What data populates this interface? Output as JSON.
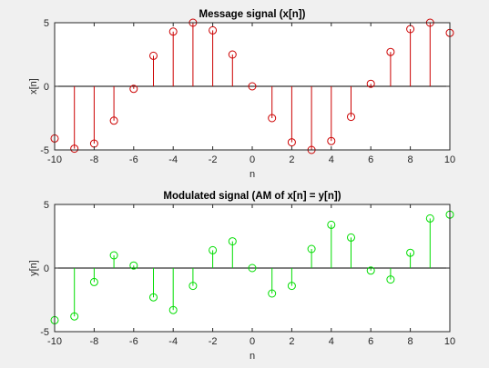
{
  "chart_data": [
    {
      "type": "stem",
      "title": "Message signal (x[n])",
      "xlabel": "n",
      "ylabel": "x[n]",
      "xlim": [
        -10,
        10
      ],
      "ylim": [
        -5,
        5
      ],
      "xticks": [
        -10,
        -8,
        -6,
        -4,
        -2,
        0,
        2,
        4,
        6,
        8,
        10
      ],
      "yticks": [
        -5,
        0,
        5
      ],
      "grid": false,
      "color": "#cc0000",
      "x": [
        -10,
        -9,
        -8,
        -7,
        -6,
        -5,
        -4,
        -3,
        -2,
        -1,
        0,
        1,
        2,
        3,
        4,
        5,
        6,
        7,
        8,
        9,
        10
      ],
      "values": [
        -4.1,
        -4.9,
        -4.5,
        -2.7,
        -0.2,
        2.4,
        4.3,
        5.0,
        4.4,
        2.5,
        0.0,
        -2.5,
        -4.4,
        -5.0,
        -4.3,
        -2.4,
        0.2,
        2.7,
        4.5,
        5.0,
        4.2
      ]
    },
    {
      "type": "stem",
      "title": "Modulated signal (AM of x[n] = y[n])",
      "xlabel": "n",
      "ylabel": "y[n]",
      "xlim": [
        -10,
        10
      ],
      "ylim": [
        -5,
        5
      ],
      "xticks": [
        -10,
        -8,
        -6,
        -4,
        -2,
        0,
        2,
        4,
        6,
        8,
        10
      ],
      "yticks": [
        -5,
        0,
        5
      ],
      "grid": false,
      "color": "#00dd00",
      "x": [
        -10,
        -9,
        -8,
        -7,
        -6,
        -5,
        -4,
        -3,
        -2,
        -1,
        0,
        1,
        2,
        3,
        4,
        5,
        6,
        7,
        8,
        9,
        10
      ],
      "values": [
        -4.1,
        -3.8,
        -1.1,
        1.0,
        0.2,
        -2.3,
        -3.3,
        -1.4,
        1.4,
        2.1,
        0.0,
        -2.0,
        -1.4,
        1.5,
        3.4,
        2.4,
        -0.2,
        -0.9,
        1.2,
        3.9,
        4.2
      ]
    }
  ]
}
